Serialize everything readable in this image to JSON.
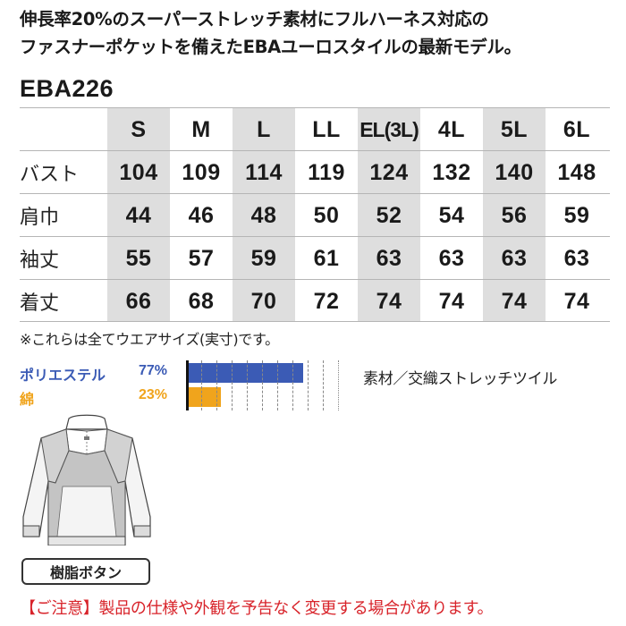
{
  "headline": {
    "line1": "伸長率20%のスーパーストレッチ素材にフルハーネス対応の",
    "line2": "ファスナーポケットを備えたEBAユーロスタイルの最新モデル。"
  },
  "model": "EBA226",
  "size_table": {
    "sizes": [
      "S",
      "M",
      "L",
      "LL",
      "EL(3L)",
      "4L",
      "5L",
      "6L"
    ],
    "rows": [
      {
        "label": "バスト",
        "values": [
          "104",
          "109",
          "114",
          "119",
          "124",
          "132",
          "140",
          "148"
        ]
      },
      {
        "label": "肩巾",
        "values": [
          "44",
          "46",
          "48",
          "50",
          "52",
          "54",
          "56",
          "59"
        ]
      },
      {
        "label": "袖丈",
        "values": [
          "55",
          "57",
          "59",
          "61",
          "63",
          "63",
          "63",
          "63"
        ]
      },
      {
        "label": "着丈",
        "values": [
          "66",
          "68",
          "70",
          "72",
          "74",
          "74",
          "74",
          "74"
        ]
      }
    ]
  },
  "note": "※これらは全てウエアサイズ(実寸)です。",
  "fabric": {
    "items": [
      {
        "name": "ポリエステル",
        "percent_label": "77%",
        "percent": 77,
        "color": "#3b5bb5"
      },
      {
        "name": "綿",
        "percent_label": "23%",
        "percent": 23,
        "color": "#f0a41c"
      }
    ],
    "material": "素材／交織ストレッチツイル"
  },
  "button_type": "樹脂ボタン",
  "caution": "【ご注意】製品の仕様や外観を予告なく変更する場合があります。",
  "colors": {
    "shade": "#dedede",
    "polyester": "#3b5bb5",
    "cotton": "#f0a41c",
    "caution": "#d8232a"
  }
}
